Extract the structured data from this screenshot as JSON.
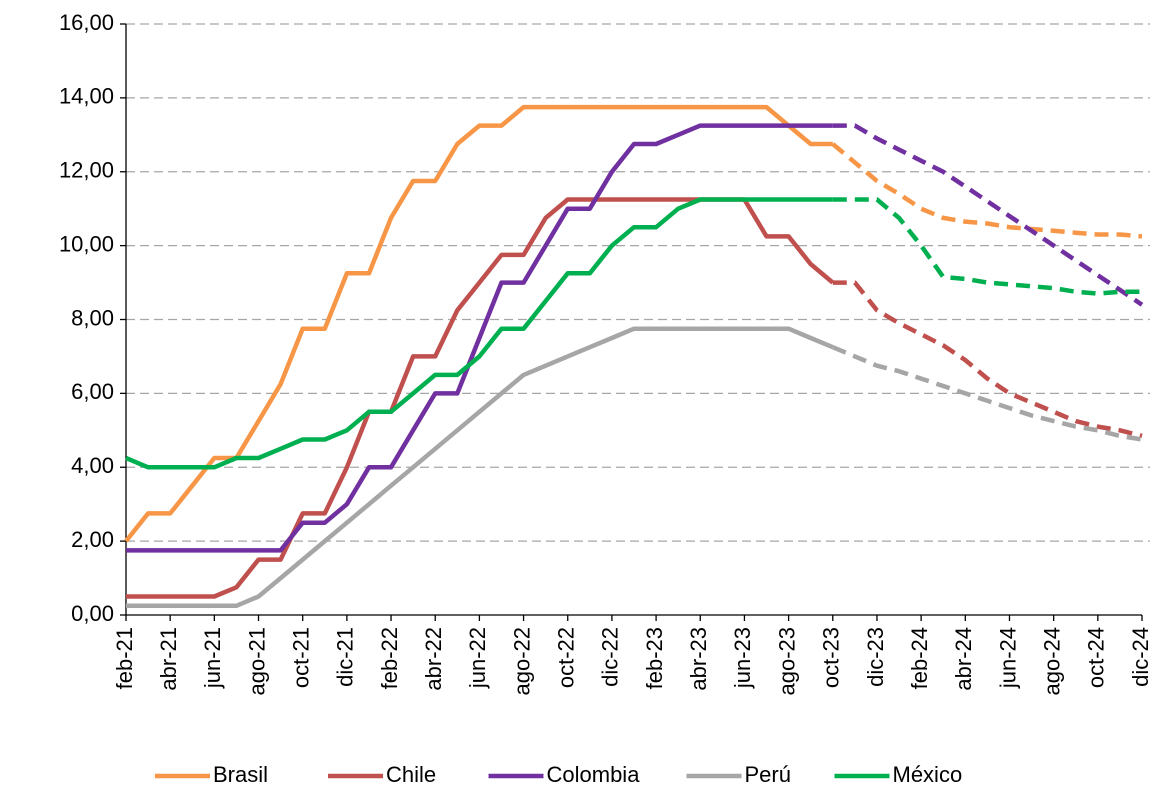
{
  "chart_data": {
    "type": "line",
    "categories": [
      "feb-21",
      null,
      "abr-21",
      null,
      "jun-21",
      null,
      "ago-21",
      null,
      "oct-21",
      null,
      "dic-21",
      null,
      "feb-22",
      null,
      "abr-22",
      null,
      "jun-22",
      null,
      "ago-22",
      null,
      "oct-22",
      null,
      "dic-22",
      null,
      "feb-23",
      null,
      "abr-23",
      null,
      "jun-23",
      null,
      "ago-23",
      null,
      "oct-23",
      null,
      "dic-23",
      null,
      "feb-24",
      null,
      "abr-24",
      null,
      "jun-24",
      null,
      "ago-24",
      null,
      "oct-24",
      null,
      "dic-24"
    ],
    "series": [
      {
        "name": "Brasil",
        "color": "#f79646",
        "values": [
          2.0,
          2.75,
          2.75,
          3.5,
          4.25,
          4.25,
          5.25,
          6.25,
          7.75,
          7.75,
          9.25,
          9.25,
          10.75,
          11.75,
          11.75,
          12.75,
          13.25,
          13.25,
          13.75,
          13.75,
          13.75,
          13.75,
          13.75,
          13.75,
          13.75,
          13.75,
          13.75,
          13.75,
          13.75,
          13.75,
          13.25,
          12.75,
          12.75,
          12.25,
          11.75,
          11.4,
          11.0,
          10.75,
          10.65,
          10.6,
          10.5,
          10.45,
          10.4,
          10.35,
          10.3,
          10.3,
          10.25
        ]
      },
      {
        "name": "Chile",
        "color": "#c0504d",
        "values": [
          0.5,
          0.5,
          0.5,
          0.5,
          0.5,
          0.75,
          1.5,
          1.5,
          2.75,
          2.75,
          4.0,
          5.5,
          5.5,
          7.0,
          7.0,
          8.25,
          9.0,
          9.75,
          9.75,
          10.75,
          11.25,
          11.25,
          11.25,
          11.25,
          11.25,
          11.25,
          11.25,
          11.25,
          11.25,
          10.25,
          10.25,
          9.5,
          9.0,
          9.0,
          8.25,
          7.9,
          7.6,
          7.3,
          6.9,
          6.4,
          6.0,
          5.75,
          5.5,
          5.25,
          5.1,
          5.0,
          4.85
        ]
      },
      {
        "name": "Colombia",
        "color": "#7030a0",
        "values": [
          1.75,
          1.75,
          1.75,
          1.75,
          1.75,
          1.75,
          1.75,
          1.75,
          2.5,
          2.5,
          3.0,
          4.0,
          4.0,
          5.0,
          6.0,
          6.0,
          7.5,
          9.0,
          9.0,
          10.0,
          11.0,
          11.0,
          12.0,
          12.75,
          12.75,
          13.0,
          13.25,
          13.25,
          13.25,
          13.25,
          13.25,
          13.25,
          13.25,
          13.25,
          12.9,
          12.6,
          12.3,
          12.0,
          11.6,
          11.2,
          10.8,
          10.4,
          10.0,
          9.6,
          9.2,
          8.8,
          8.4
        ]
      },
      {
        "name": "Perú",
        "color": "#a6a6a6",
        "values": [
          0.25,
          0.25,
          0.25,
          0.25,
          0.25,
          0.25,
          0.5,
          1.0,
          1.5,
          2.0,
          2.5,
          3.0,
          3.5,
          4.0,
          4.5,
          5.0,
          5.5,
          6.0,
          6.5,
          6.75,
          7.0,
          7.25,
          7.5,
          7.75,
          7.75,
          7.75,
          7.75,
          7.75,
          7.75,
          7.75,
          7.75,
          7.5,
          7.25,
          7.0,
          6.75,
          6.6,
          6.4,
          6.2,
          6.0,
          5.8,
          5.6,
          5.4,
          5.25,
          5.1,
          5.0,
          4.85,
          4.75
        ]
      },
      {
        "name": "México",
        "color": "#00b050",
        "values": [
          4.25,
          4.0,
          4.0,
          4.0,
          4.0,
          4.25,
          4.25,
          4.5,
          4.75,
          4.75,
          5.0,
          5.5,
          5.5,
          6.0,
          6.5,
          6.5,
          7.0,
          7.75,
          7.75,
          8.5,
          9.25,
          9.25,
          10.0,
          10.5,
          10.5,
          11.0,
          11.25,
          11.25,
          11.25,
          11.25,
          11.25,
          11.25,
          11.25,
          11.25,
          11.25,
          10.75,
          10.0,
          9.15,
          9.1,
          9.0,
          8.95,
          8.9,
          8.85,
          8.75,
          8.7,
          8.75,
          8.75
        ]
      }
    ],
    "dashed_from": 32,
    "ylim": [
      0,
      16
    ],
    "yticks": [
      {
        "value": 0,
        "label": "0,00"
      },
      {
        "value": 2,
        "label": "2,00"
      },
      {
        "value": 4,
        "label": "4,00"
      },
      {
        "value": 6,
        "label": "6,00"
      },
      {
        "value": 8,
        "label": "8,00"
      },
      {
        "value": 10,
        "label": "10,00"
      },
      {
        "value": 12,
        "label": "12,00"
      },
      {
        "value": 14,
        "label": "14,00"
      },
      {
        "value": 16,
        "label": "16,00"
      }
    ],
    "grid": true,
    "legend": "bottom"
  }
}
